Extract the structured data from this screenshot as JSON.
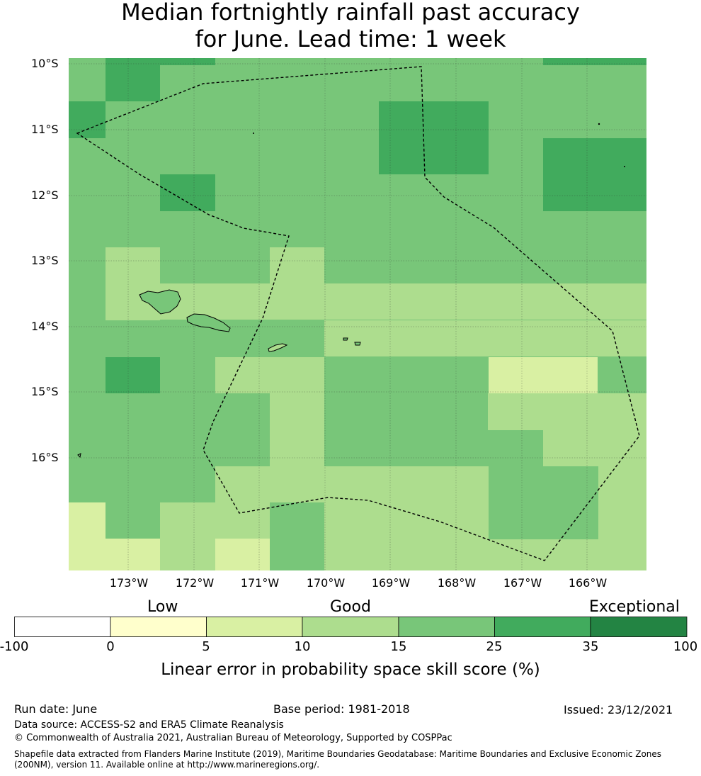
{
  "title": {
    "line1": "Median fortnightly rainfall past accuracy",
    "line2": "for June. Lead time: 1 week"
  },
  "map": {
    "lat_labels": [
      "10°S",
      "11°S",
      "12°S",
      "13°S",
      "14°S",
      "15°S",
      "16°S"
    ],
    "lon_labels": [
      "173°W",
      "172°W",
      "171°W",
      "170°W",
      "169°W",
      "168°W",
      "167°W",
      "166°W"
    ],
    "region": "Samoa",
    "colors": {
      "c0": "#ffffcc",
      "c5": "#d9f0a3",
      "c10": "#addd8e",
      "c15": "#78c679",
      "c25": "#41ab5d",
      "c35": "#238443"
    }
  },
  "colorbar": {
    "categories": [
      "Low",
      "Good",
      "Exceptional"
    ],
    "ticks": [
      "-100",
      "0",
      "5",
      "10",
      "15",
      "25",
      "35",
      "100"
    ],
    "label": "Linear error in probability space skill score (%)"
  },
  "footer": {
    "run_date": "Run date: June",
    "base_period": "Base period: 1981-2018",
    "issued": "Issued: 23/12/2021",
    "data_source": "Data source: ACCESS-S2 and ERA5 Climate Reanalysis",
    "copyright": "© Commonwealth of Australia 2021, Australian Bureau of Meteorology, Supported by COSPPac",
    "shapefile": "Shapefile data extracted from Flanders Marine Institute (2019), Maritime Boundaries Geodatabase: Maritime Boundaries and Exclusive Economic Zones (200NM), version 11. Available online at http://www.marineregions.org/."
  }
}
